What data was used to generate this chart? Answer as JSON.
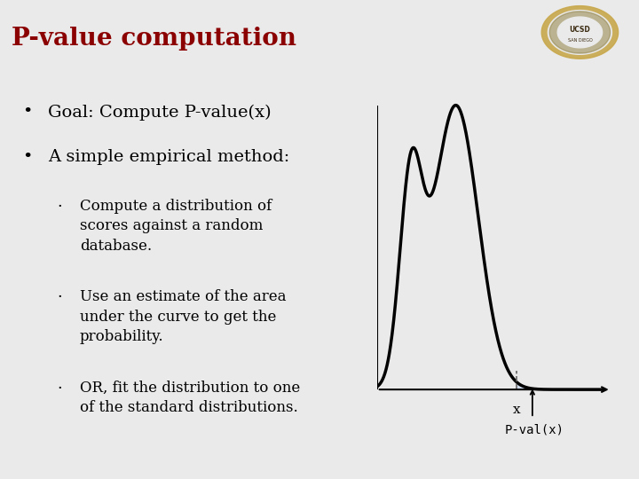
{
  "title": "P-value computation",
  "title_color": "#8B0000",
  "title_fontsize": 20,
  "bg_color": "#EAEAEA",
  "bullet1": "Goal: Compute P-value(x)",
  "bullet2": "A simple empirical method:",
  "sub_bullet1": "Compute a distribution of\nscores against a random\ndatabase.",
  "sub_bullet2": "Use an estimate of the area\nunder the curve to get the\nprobability.",
  "sub_bullet3": "OR, fit the distribution to one\nof the standard distributions.",
  "curve_color": "#000000",
  "fill_color": "#C8D8F0",
  "dashed_color": "#666666",
  "label_x": "x",
  "label_pval": "P-val(x)",
  "font_family": "serif",
  "header_line_color": "#AAAAAA",
  "text_color": "#000000"
}
